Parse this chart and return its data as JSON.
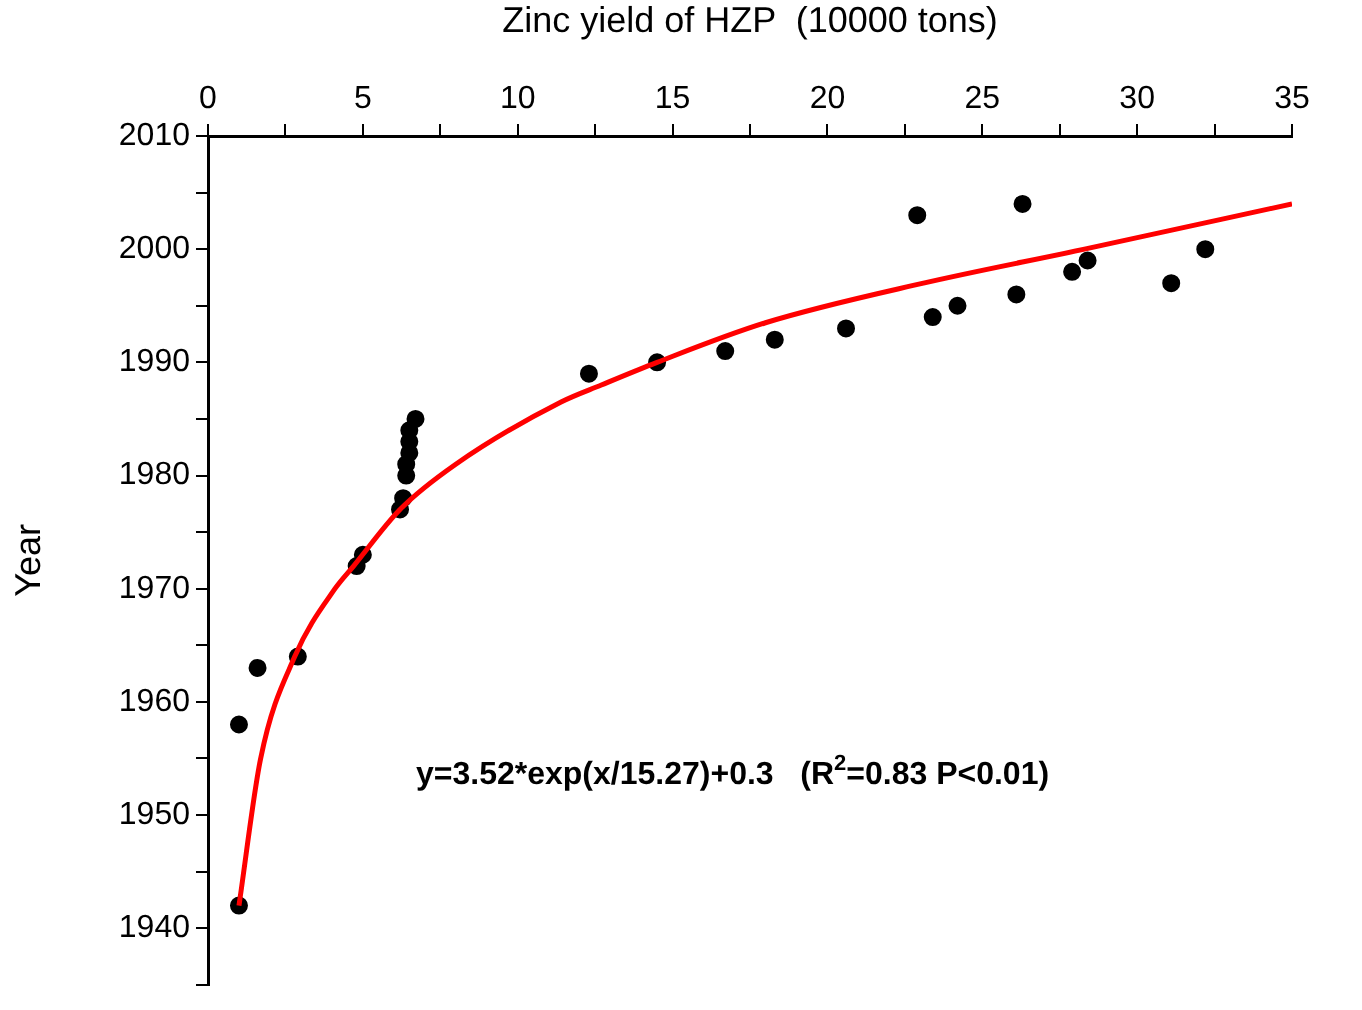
{
  "chart_data": {
    "type": "scatter",
    "xlabel": "Zinc yield of HZP  (10000 tons)",
    "ylabel": "Year",
    "xlim": [
      0,
      35
    ],
    "xticks": [
      0,
      {
        "value": 2.5,
        "label": null
      },
      5,
      {
        "value": 7.5,
        "label": null
      },
      10,
      {
        "value": 12.5,
        "label": null
      },
      15,
      {
        "value": 17.5,
        "label": null
      },
      20,
      {
        "value": 22.5,
        "label": null
      },
      25,
      {
        "value": 27.5,
        "label": null
      },
      30,
      {
        "value": 32.5,
        "label": null
      },
      35
    ],
    "ylim": [
      1935,
      2010
    ],
    "yticks": [
      {
        "value": 1935,
        "label": null
      },
      1940,
      {
        "value": 1945,
        "label": null
      },
      1950,
      {
        "value": 1955,
        "label": null
      },
      1960,
      {
        "value": 1965,
        "label": null
      },
      1970,
      {
        "value": 1975,
        "label": null
      },
      1980,
      {
        "value": 1985,
        "label": null
      },
      1990,
      {
        "value": 1995,
        "label": null
      },
      2000,
      {
        "value": 2005,
        "label": null
      },
      2010
    ],
    "grid": false,
    "legend": false,
    "marker": "circle",
    "series": [
      {
        "color": "#000000",
        "x": [
          1.0,
          1.0,
          1.6,
          2.9,
          4.8,
          5.0,
          6.2,
          6.3,
          6.4,
          6.4,
          6.5,
          6.5,
          6.5,
          6.7,
          12.3,
          14.5,
          16.7,
          18.3,
          20.6,
          22.9,
          23.4,
          24.2,
          26.1,
          26.3,
          27.9,
          28.4,
          31.1,
          32.2
        ],
        "values": [
          1942,
          1958,
          1963,
          1964,
          1972,
          1973,
          1977,
          1978,
          1980,
          1981,
          1982,
          1983,
          1984,
          1985,
          1989,
          1990,
          1991,
          1992,
          1993,
          2003,
          1994,
          1995,
          1996,
          2004,
          1998,
          1999,
          1997,
          2000
        ]
      },
      {
        "type": "line",
        "color": "#ff0000",
        "marker": "none",
        "x": [
          1,
          1.7,
          2.8,
          4.1,
          4.7,
          6.2,
          8,
          11.4,
          12.7,
          14.5,
          18,
          23.1,
          28.3,
          35
        ],
        "values": [
          1942,
          1955,
          1964,
          1970,
          1972,
          1977,
          1981,
          1986.5,
          1988,
          1990,
          1993.5,
          1997,
          2000,
          2004
        ]
      }
    ],
    "annotations": [
      {
        "text": "y=3.52*exp(x/15.27)+0.3   (R$^{2}$=0.83 P<0.01)"
      }
    ]
  }
}
